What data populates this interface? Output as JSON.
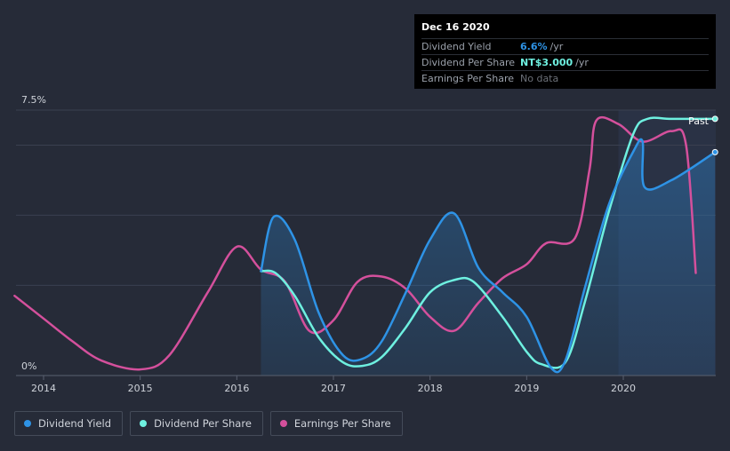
{
  "tooltip": {
    "date": "Dec 16 2020",
    "rows": [
      {
        "label": "Dividend Yield",
        "value": "6.6%",
        "unit": "/yr",
        "color": "#2e93e6"
      },
      {
        "label": "Dividend Per Share",
        "value": "NT$3.000",
        "unit": "/yr",
        "color": "#6ef0e0"
      },
      {
        "label": "Earnings Per Share",
        "value": "No data",
        "unit": "",
        "color": "#6c7078"
      }
    ]
  },
  "legend": [
    {
      "label": "Dividend Yield",
      "color": "#2e93e6"
    },
    {
      "label": "Dividend Per Share",
      "color": "#6ef0e0"
    },
    {
      "label": "Earnings Per Share",
      "color": "#d4509c"
    }
  ],
  "chart_data": {
    "type": "line",
    "title": "",
    "xlabel": "",
    "ylabel": "",
    "x_ticks": [
      "2014",
      "2015",
      "2016",
      "2017",
      "2018",
      "2019",
      "2020"
    ],
    "y_tick_labels": [
      "7.5%",
      "0%"
    ],
    "ylim": [
      0,
      7.5
    ],
    "xlim": [
      2013.7,
      2020.95
    ],
    "past_label": "Past",
    "past_start": 2019.95,
    "series": [
      {
        "name": "Dividend Yield",
        "color": "#2e93e6",
        "filled": true,
        "points": [
          [
            2016.25,
            2.9
          ],
          [
            2016.38,
            4.45
          ],
          [
            2016.6,
            3.8
          ],
          [
            2016.85,
            1.7
          ],
          [
            2017.1,
            0.5
          ],
          [
            2017.3,
            0.4
          ],
          [
            2017.5,
            0.9
          ],
          [
            2017.75,
            2.3
          ],
          [
            2018.0,
            3.8
          ],
          [
            2018.25,
            4.55
          ],
          [
            2018.5,
            3.0
          ],
          [
            2018.75,
            2.3
          ],
          [
            2019.0,
            1.6
          ],
          [
            2019.25,
            0.15
          ],
          [
            2019.4,
            0.35
          ],
          [
            2019.6,
            2.4
          ],
          [
            2019.85,
            4.8
          ],
          [
            2020.1,
            6.3
          ],
          [
            2020.2,
            6.6
          ],
          [
            2020.22,
            5.3
          ],
          [
            2020.5,
            5.5
          ],
          [
            2020.95,
            6.3
          ]
        ]
      },
      {
        "name": "Dividend Per Share",
        "color": "#6ef0e0",
        "filled": false,
        "points": [
          [
            2016.25,
            2.9
          ],
          [
            2016.4,
            2.85
          ],
          [
            2016.6,
            2.2
          ],
          [
            2016.85,
            1.0
          ],
          [
            2017.1,
            0.3
          ],
          [
            2017.3,
            0.2
          ],
          [
            2017.5,
            0.45
          ],
          [
            2017.75,
            1.3
          ],
          [
            2018.0,
            2.3
          ],
          [
            2018.25,
            2.65
          ],
          [
            2018.45,
            2.6
          ],
          [
            2018.75,
            1.6
          ],
          [
            2019.0,
            0.6
          ],
          [
            2019.15,
            0.25
          ],
          [
            2019.4,
            0.3
          ],
          [
            2019.6,
            2.0
          ],
          [
            2019.85,
            4.6
          ],
          [
            2020.1,
            6.8
          ],
          [
            2020.25,
            7.25
          ],
          [
            2020.5,
            7.25
          ],
          [
            2020.95,
            7.25
          ]
        ]
      },
      {
        "name": "Earnings Per Share",
        "color": "#d4509c",
        "filled": false,
        "points": [
          [
            2013.7,
            2.2
          ],
          [
            2014.0,
            1.55
          ],
          [
            2014.3,
            0.9
          ],
          [
            2014.6,
            0.35
          ],
          [
            2015.0,
            0.1
          ],
          [
            2015.3,
            0.5
          ],
          [
            2015.7,
            2.3
          ],
          [
            2016.0,
            3.6
          ],
          [
            2016.25,
            2.95
          ],
          [
            2016.5,
            2.6
          ],
          [
            2016.75,
            1.2
          ],
          [
            2017.0,
            1.5
          ],
          [
            2017.25,
            2.6
          ],
          [
            2017.5,
            2.75
          ],
          [
            2017.75,
            2.4
          ],
          [
            2018.0,
            1.6
          ],
          [
            2018.25,
            1.2
          ],
          [
            2018.5,
            2.0
          ],
          [
            2018.75,
            2.7
          ],
          [
            2019.0,
            3.1
          ],
          [
            2019.2,
            3.7
          ],
          [
            2019.5,
            3.85
          ],
          [
            2019.65,
            5.8
          ],
          [
            2019.72,
            7.2
          ],
          [
            2019.95,
            7.1
          ],
          [
            2020.2,
            6.6
          ],
          [
            2020.5,
            6.9
          ],
          [
            2020.65,
            6.5
          ],
          [
            2020.75,
            2.85
          ]
        ]
      }
    ]
  }
}
